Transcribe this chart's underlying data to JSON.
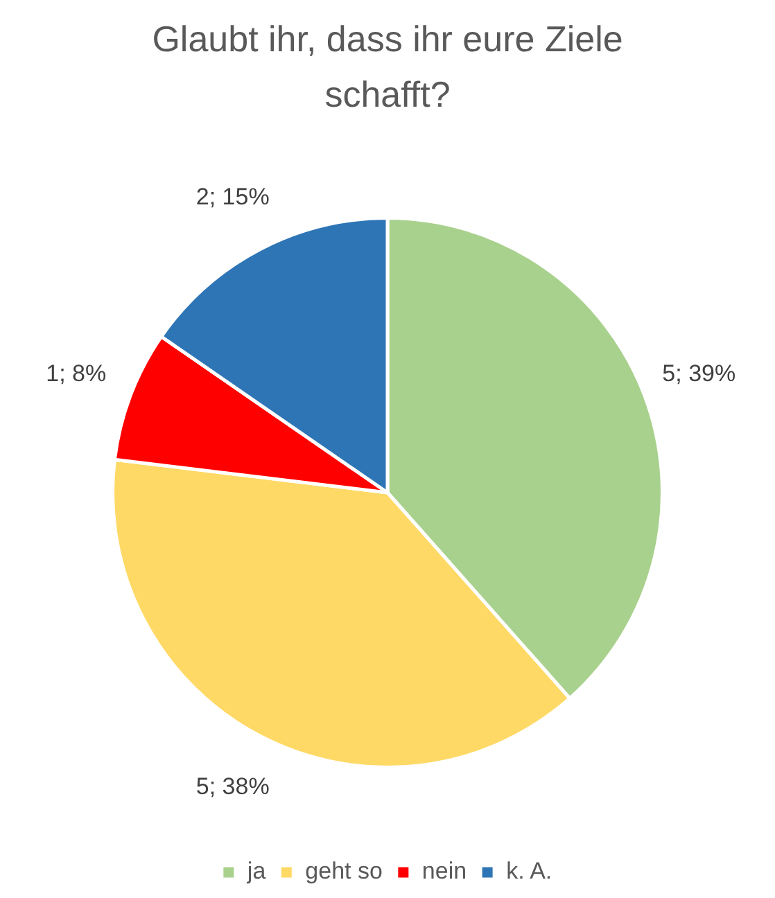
{
  "chart_data": {
    "type": "pie",
    "title": "Glaubt ihr, dass ihr eure Ziele schafft?",
    "categories": [
      "ja",
      "geht so",
      "nein",
      "k. A."
    ],
    "values": [
      5,
      5,
      1,
      2
    ],
    "value_labels": [
      "5; 39%",
      "5; 38%",
      "1; 8%",
      "2; 15%"
    ],
    "colors": [
      "#a9d18e",
      "#ffd966",
      "#ff0000",
      "#2e75b6"
    ],
    "legend": "bottom"
  }
}
